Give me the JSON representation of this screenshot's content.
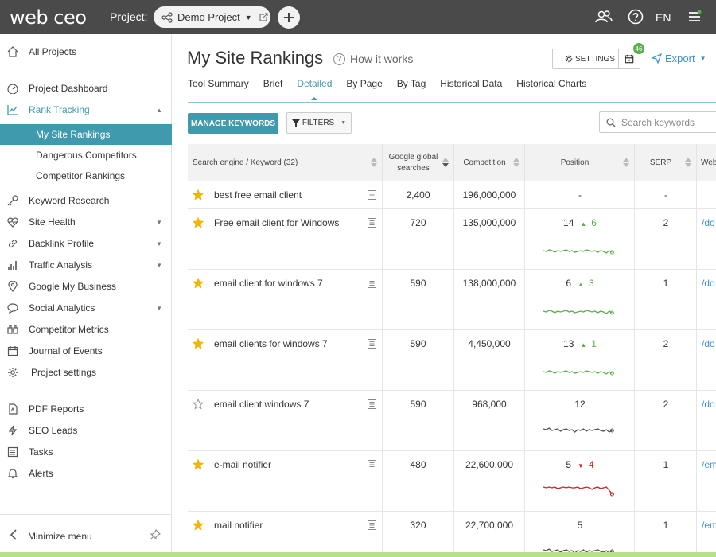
{
  "topbar": {
    "logo": "web ceo",
    "project_label": "Project:",
    "project_name": "Demo Project",
    "language": "EN"
  },
  "sidebar": {
    "all_projects": "All Projects",
    "items": [
      {
        "label": "Project Dashboard"
      },
      {
        "label": "Rank Tracking"
      },
      {
        "label": "My Site Rankings"
      },
      {
        "label": "Dangerous Competitors"
      },
      {
        "label": "Competitor Rankings"
      },
      {
        "label": "Keyword Research"
      },
      {
        "label": "Site Health"
      },
      {
        "label": "Backlink Profile"
      },
      {
        "label": "Traffic Analysis"
      },
      {
        "label": "Google My Business"
      },
      {
        "label": "Social Analytics"
      },
      {
        "label": "Competitor Metrics"
      },
      {
        "label": "Journal of Events"
      },
      {
        "label": "Project settings"
      }
    ],
    "bottom_items": [
      {
        "label": "PDF Reports"
      },
      {
        "label": "SEO Leads"
      },
      {
        "label": "Tasks"
      },
      {
        "label": "Alerts"
      }
    ],
    "minimize": "Minimize menu"
  },
  "header": {
    "title": "My Site Rankings",
    "how_it_works": "How it works",
    "settings": "SETTINGS",
    "badge_count": "46",
    "export": "Export"
  },
  "tabs": [
    {
      "label": "Tool Summary"
    },
    {
      "label": "Brief"
    },
    {
      "label": "Detailed"
    },
    {
      "label": "By Page"
    },
    {
      "label": "By Tag"
    },
    {
      "label": "Historical Data"
    },
    {
      "label": "Historical Charts"
    }
  ],
  "toolbar": {
    "manage": "MANAGE KEYWORDS",
    "filters": "FILTERS",
    "search_placeholder": "Search keywords"
  },
  "table": {
    "headers": {
      "keyword": "Search engine / Keyword (32)",
      "searches_1": "Google global",
      "searches_2": "searches",
      "competition": "Competition",
      "position": "Position",
      "serp": "SERP",
      "web": "Web"
    },
    "rows": [
      {
        "starred": true,
        "keyword": "best free email client",
        "searches": "2,400",
        "competition": "196,000,000",
        "position": "-",
        "change": "",
        "direction": "none",
        "serp": "-",
        "url": ""
      },
      {
        "starred": true,
        "keyword": "Free email client for Windows",
        "searches": "720",
        "competition": "135,000,000",
        "position": "14",
        "change": "6",
        "direction": "up",
        "serp": "2",
        "url": "/do"
      },
      {
        "starred": true,
        "keyword": "email client for windows 7",
        "searches": "590",
        "competition": "138,000,000",
        "position": "6",
        "change": "3",
        "direction": "up",
        "serp": "1",
        "url": "/do"
      },
      {
        "starred": true,
        "keyword": "email clients for windows 7",
        "searches": "590",
        "competition": "4,450,000",
        "position": "13",
        "change": "1",
        "direction": "up",
        "serp": "2",
        "url": "/do"
      },
      {
        "starred": false,
        "keyword": "email client windows 7",
        "searches": "590",
        "competition": "968,000",
        "position": "12",
        "change": "",
        "direction": "flat",
        "serp": "2",
        "url": "/do"
      },
      {
        "starred": true,
        "keyword": "e-mail notifier",
        "searches": "480",
        "competition": "22,600,000",
        "position": "5",
        "change": "4",
        "direction": "down",
        "serp": "1",
        "url": "/em"
      },
      {
        "starred": true,
        "keyword": "mail notifier",
        "searches": "320",
        "competition": "22,700,000",
        "position": "5",
        "change": "",
        "direction": "flat",
        "serp": "1",
        "url": "/em"
      }
    ]
  },
  "colors": {
    "accent": "#3f9aad",
    "up": "#5bb04a",
    "down": "#cc2222",
    "flat": "#555555",
    "star": "#f2b500"
  }
}
